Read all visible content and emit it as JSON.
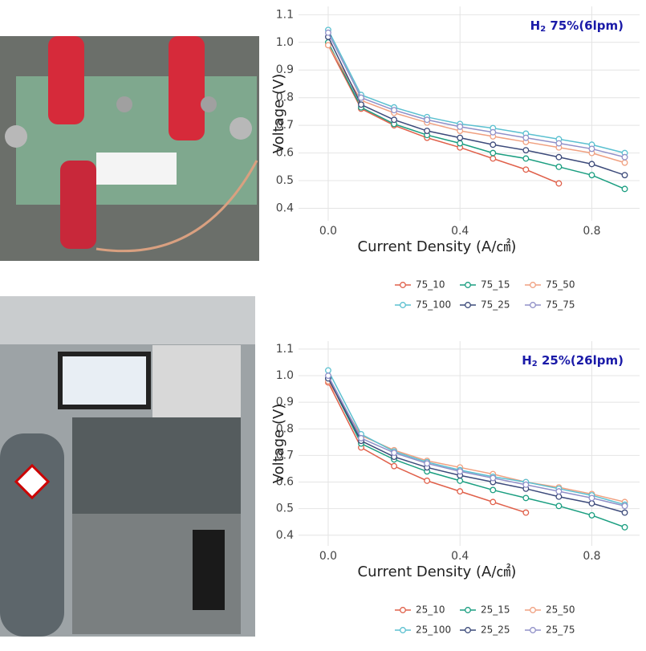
{
  "chart_data": [
    {
      "type": "line",
      "annotation": {
        "prefix": "H",
        "subscript": "2",
        "rest": " 75%(6lpm)"
      },
      "x_label": "Current Density (A/㎠)",
      "y_label": "Voltage (V)",
      "x": [
        0,
        0.1,
        0.2,
        0.3,
        0.4,
        0.5,
        0.6,
        0.7,
        0.8,
        0.9
      ],
      "xlim": [
        -0.09,
        0.945
      ],
      "xticks": [
        {
          "value": 0,
          "label": "0.0"
        },
        0.4,
        0.8
      ],
      "ylim": [
        0.355,
        1.13
      ],
      "yticks": [
        0.4,
        0.5,
        0.6,
        0.7,
        0.8,
        0.9,
        {
          "value": 1,
          "label": "1.0"
        },
        1.1
      ],
      "grid": true,
      "series": [
        {
          "name": "75_10",
          "color": "#e0604a",
          "values": [
            0.99,
            0.76,
            0.7,
            0.655,
            0.62,
            0.58,
            0.54,
            0.49,
            null,
            null
          ]
        },
        {
          "name": "75_15",
          "color": "#1a9e80",
          "values": [
            1.0,
            0.765,
            0.705,
            0.665,
            0.635,
            0.6,
            0.58,
            0.55,
            0.52,
            0.47
          ]
        },
        {
          "name": "75_50",
          "color": "#f0a080",
          "values": [
            0.99,
            0.79,
            0.745,
            0.71,
            0.68,
            0.66,
            0.64,
            0.62,
            0.6,
            0.565
          ]
        },
        {
          "name": "75_100",
          "color": "#5bc0d0",
          "values": [
            1.045,
            0.81,
            0.765,
            0.73,
            0.705,
            0.69,
            0.67,
            0.65,
            0.63,
            0.6
          ]
        },
        {
          "name": "75_25",
          "color": "#3c4a7a",
          "values": [
            1.02,
            0.775,
            0.72,
            0.68,
            0.655,
            0.63,
            0.61,
            0.585,
            0.56,
            0.52
          ]
        },
        {
          "name": "75_75",
          "color": "#9090c8",
          "values": [
            1.035,
            0.8,
            0.755,
            0.72,
            0.695,
            0.675,
            0.655,
            0.635,
            0.615,
            0.585
          ]
        }
      ]
    },
    {
      "type": "line",
      "annotation": {
        "prefix": "H",
        "subscript": "2",
        "rest": " 25%(26lpm)"
      },
      "x_label": "Current Density (A/㎠)",
      "y_label": "Voltage (V)",
      "x": [
        0,
        0.1,
        0.2,
        0.3,
        0.4,
        0.5,
        0.6,
        0.7,
        0.8,
        0.9
      ],
      "xlim": [
        -0.09,
        0.945
      ],
      "xticks": [
        {
          "value": 0,
          "label": "0.0"
        },
        0.4,
        0.8
      ],
      "ylim": [
        0.36,
        1.13
      ],
      "yticks": [
        0.4,
        0.5,
        0.6,
        0.7,
        0.8,
        0.9,
        {
          "value": 1,
          "label": "1.0"
        },
        1.1
      ],
      "grid": true,
      "series": [
        {
          "name": "25_10",
          "color": "#e0604a",
          "values": [
            0.975,
            0.73,
            0.66,
            0.605,
            0.565,
            0.525,
            0.485,
            null,
            null,
            null
          ]
        },
        {
          "name": "25_15",
          "color": "#1a9e80",
          "values": [
            0.99,
            0.745,
            0.685,
            0.64,
            0.605,
            0.57,
            0.54,
            0.51,
            0.475,
            0.43
          ]
        },
        {
          "name": "25_50",
          "color": "#f0a080",
          "values": [
            0.98,
            0.775,
            0.72,
            0.68,
            0.655,
            0.63,
            0.6,
            0.58,
            0.555,
            0.525
          ]
        },
        {
          "name": "25_100",
          "color": "#5bc0d0",
          "values": [
            1.02,
            0.78,
            0.715,
            0.675,
            0.645,
            0.62,
            0.6,
            0.575,
            0.55,
            0.515
          ]
        },
        {
          "name": "25_25",
          "color": "#3c4a7a",
          "values": [
            0.99,
            0.755,
            0.695,
            0.655,
            0.625,
            0.6,
            0.575,
            0.545,
            0.52,
            0.485
          ]
        },
        {
          "name": "25_75",
          "color": "#9090c8",
          "values": [
            1.0,
            0.765,
            0.71,
            0.67,
            0.64,
            0.615,
            0.59,
            0.565,
            0.54,
            0.51
          ]
        }
      ]
    }
  ]
}
